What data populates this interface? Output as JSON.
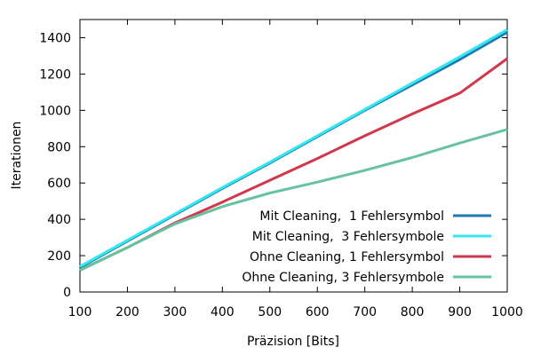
{
  "chart_data": {
    "type": "line",
    "title": "",
    "xlabel": "Präzision [Bits]",
    "ylabel": "Iterationen",
    "xlim": [
      100,
      1000
    ],
    "ylim": [
      0,
      1500
    ],
    "xticks": [
      100,
      200,
      300,
      400,
      500,
      600,
      700,
      800,
      900,
      1000
    ],
    "yticks": [
      0,
      200,
      400,
      600,
      800,
      1000,
      1200,
      1400
    ],
    "grid": false,
    "legend_position": "bottom-right",
    "x": [
      100,
      200,
      300,
      400,
      500,
      600,
      700,
      800,
      900,
      1000
    ],
    "series": [
      {
        "name": "Mit Cleaning,  1 Fehlersymbol",
        "color": "#1f77b4",
        "values": [
          135,
          280,
          425,
          570,
          710,
          855,
          1000,
          1140,
          1280,
          1430
        ]
      },
      {
        "name": "Mit Cleaning,  3 Fehlersymbole",
        "color": "#33e8f0",
        "values": [
          140,
          285,
          430,
          575,
          715,
          860,
          1005,
          1150,
          1295,
          1445
        ]
      },
      {
        "name": "Ohne Cleaning, 1 Fehlersymbol",
        "color": "#d0384c",
        "values": [
          120,
          245,
          380,
          495,
          615,
          735,
          860,
          980,
          1095,
          1285
        ]
      },
      {
        "name": "Ohne Cleaning, 3 Fehlersymbole",
        "color": "#66c2a0",
        "values": [
          120,
          245,
          375,
          470,
          545,
          605,
          670,
          740,
          820,
          895
        ]
      }
    ]
  }
}
